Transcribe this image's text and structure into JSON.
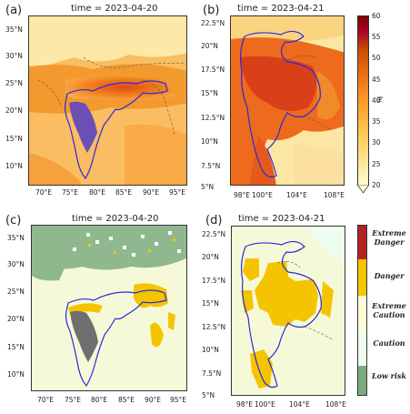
{
  "panels": [
    {
      "label": "(a)",
      "title": "time = 2023-04-20",
      "lat_ticks": [
        "35°N",
        "30°N",
        "25°N",
        "20°N",
        "15°N",
        "10°N"
      ],
      "lon_ticks": [
        "70°E",
        "75°E",
        "80°E",
        "85°E",
        "90°E",
        "95°E"
      ]
    },
    {
      "label": "(b)",
      "title": "time = 2023-04-21",
      "lat_ticks": [
        "22.5°N",
        "20°N",
        "17.5°N",
        "15°N",
        "12.5°N",
        "10°N",
        "7.5°N",
        "5°N"
      ],
      "lon_ticks": [
        "98°E",
        "100°E",
        "104°E",
        "108°E"
      ]
    },
    {
      "label": "(c)",
      "title": "time = 2023-04-20",
      "lat_ticks": [
        "35°N",
        "30°N",
        "25°N",
        "20°N",
        "15°N",
        "10°N"
      ],
      "lon_ticks": [
        "70°E",
        "75°E",
        "80°E",
        "85°E",
        "90°E",
        "95°E"
      ]
    },
    {
      "label": "(d)",
      "title": "time = 2023-04-21",
      "lat_ticks": [
        "22.5°N",
        "20°N",
        "17.5°N",
        "15°N",
        "12.5°N",
        "10°N",
        "7.5°N",
        "5°N"
      ],
      "lon_ticks": [
        "98°E",
        "100°E",
        "104°E",
        "108°E"
      ]
    }
  ],
  "colorbar_hi": {
    "label": "hi",
    "ticks": [
      "60",
      "55",
      "50",
      "45",
      "40",
      "35",
      "30",
      "25",
      "20"
    ],
    "range": [
      20,
      60
    ],
    "colors": [
      "#fffdd0",
      "#fee391",
      "#fec44f",
      "#fe9929",
      "#ec7014",
      "#cc4c02",
      "#a50026",
      "#7f0000"
    ]
  },
  "colorbar_risk": {
    "categories": [
      "Extreme Danger",
      "Danger",
      "Extreme Caution",
      "Caution",
      "Low risk"
    ],
    "colors": [
      "#b22222",
      "#f5c400",
      "#fdfdd8",
      "#eefcef",
      "#7dab7d"
    ]
  },
  "map_colors": {
    "boundary": "#2a2ad8",
    "heat_highlight": "#6a50b4",
    "risk_highlight": "#6f6f6f",
    "border_dash": "#555555"
  }
}
